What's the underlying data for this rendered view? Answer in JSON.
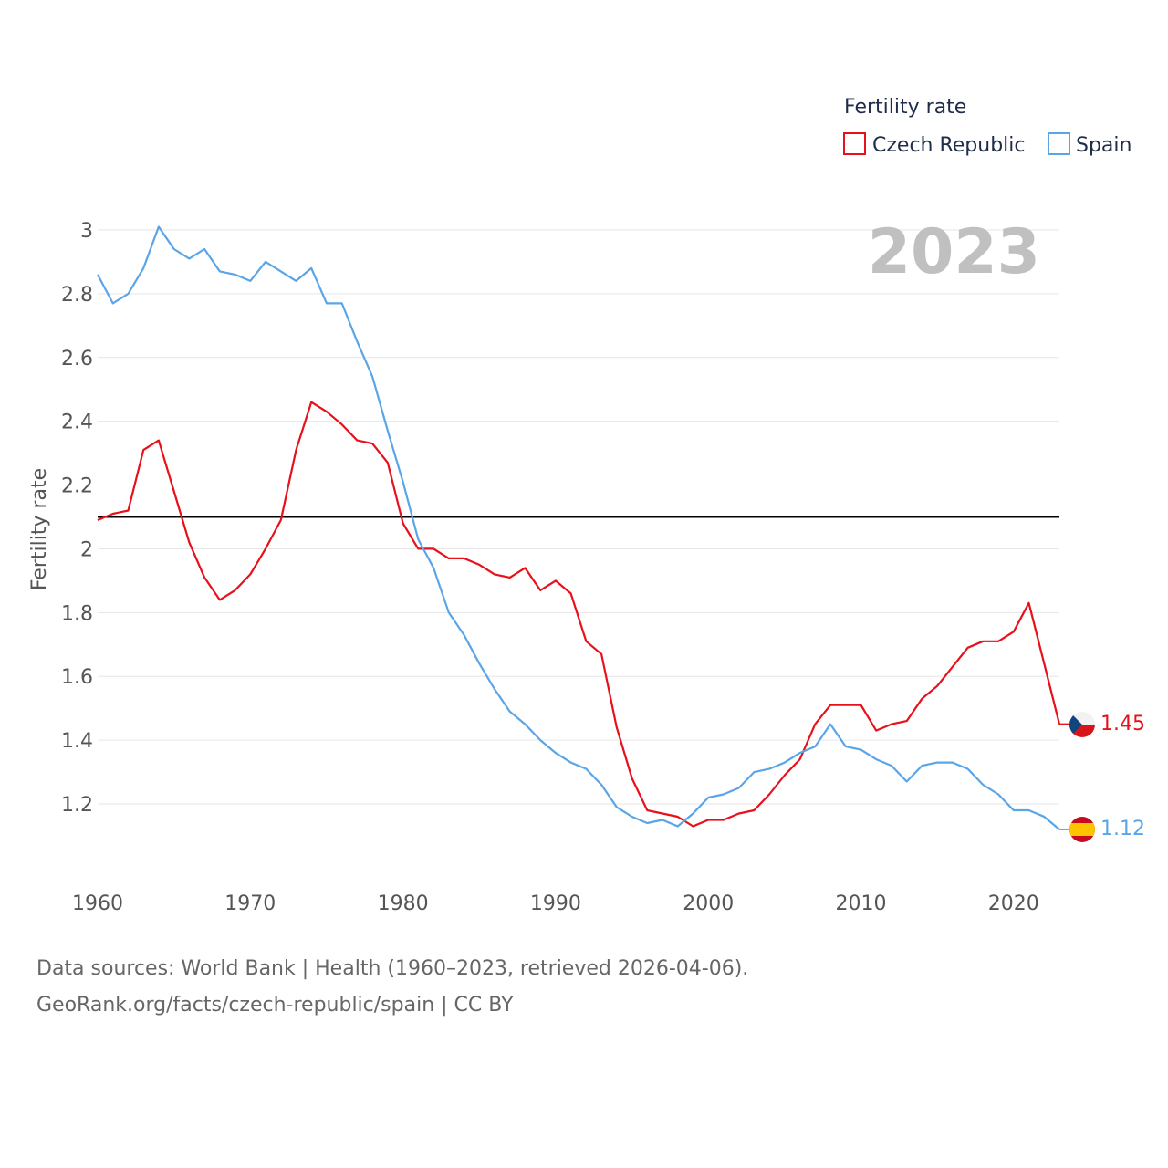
{
  "colors": {
    "czech": "#e8101a",
    "spain": "#5aa5e8",
    "reference": "#000000",
    "grid": "#e6e6e6",
    "year": "#c0c0c0"
  },
  "chart_data": {
    "type": "line",
    "title": "Fertility rate",
    "ylabel": "Fertility rate",
    "xlabel": "",
    "year_label": "2023",
    "xlim": [
      1960,
      2023
    ],
    "ylim": [
      1.0,
      3.05
    ],
    "x_ticks": [
      1960,
      1970,
      1980,
      1990,
      2000,
      2010,
      2020
    ],
    "y_ticks": [
      {
        "value": 1.2,
        "label": "1.2"
      },
      {
        "value": 1.4,
        "label": "1.4"
      },
      {
        "value": 1.6,
        "label": "1.6"
      },
      {
        "value": 1.8,
        "label": "1.8"
      },
      {
        "value": 2.0,
        "label": "2"
      },
      {
        "value": 2.2,
        "label": "2.2"
      },
      {
        "value": 2.4,
        "label": "2.4"
      },
      {
        "value": 2.6,
        "label": "2.6"
      },
      {
        "value": 2.8,
        "label": "2.8"
      },
      {
        "value": 3.0,
        "label": "3"
      }
    ],
    "reference_line": 2.1,
    "x": [
      1960,
      1961,
      1962,
      1963,
      1964,
      1965,
      1966,
      1967,
      1968,
      1969,
      1970,
      1971,
      1972,
      1973,
      1974,
      1975,
      1976,
      1977,
      1978,
      1979,
      1980,
      1981,
      1982,
      1983,
      1984,
      1985,
      1986,
      1987,
      1988,
      1989,
      1990,
      1991,
      1992,
      1993,
      1994,
      1995,
      1996,
      1997,
      1998,
      1999,
      2000,
      2001,
      2002,
      2003,
      2004,
      2005,
      2006,
      2007,
      2008,
      2009,
      2010,
      2011,
      2012,
      2013,
      2014,
      2015,
      2016,
      2017,
      2018,
      2019,
      2020,
      2021,
      2022,
      2023
    ],
    "series": [
      {
        "name": "Czech Republic",
        "key": "czech",
        "end_label": "1.45",
        "values": [
          2.09,
          2.11,
          2.12,
          2.31,
          2.34,
          2.18,
          2.02,
          1.91,
          1.84,
          1.87,
          1.92,
          2.0,
          2.09,
          2.31,
          2.46,
          2.43,
          2.39,
          2.34,
          2.33,
          2.27,
          2.08,
          2.0,
          2.0,
          1.97,
          1.97,
          1.95,
          1.92,
          1.91,
          1.94,
          1.87,
          1.9,
          1.86,
          1.71,
          1.67,
          1.44,
          1.28,
          1.18,
          1.17,
          1.16,
          1.13,
          1.15,
          1.15,
          1.17,
          1.18,
          1.23,
          1.29,
          1.34,
          1.45,
          1.51,
          1.51,
          1.51,
          1.43,
          1.45,
          1.46,
          1.53,
          1.57,
          1.63,
          1.69,
          1.71,
          1.71,
          1.74,
          1.83,
          1.64,
          1.45
        ]
      },
      {
        "name": "Spain",
        "key": "spain",
        "end_label": "1.12",
        "values": [
          2.86,
          2.77,
          2.8,
          2.88,
          3.01,
          2.94,
          2.91,
          2.94,
          2.87,
          2.86,
          2.84,
          2.9,
          2.87,
          2.84,
          2.88,
          2.77,
          2.77,
          2.65,
          2.54,
          2.37,
          2.21,
          2.03,
          1.94,
          1.8,
          1.73,
          1.64,
          1.56,
          1.49,
          1.45,
          1.4,
          1.36,
          1.33,
          1.31,
          1.26,
          1.19,
          1.16,
          1.14,
          1.15,
          1.13,
          1.17,
          1.22,
          1.23,
          1.25,
          1.3,
          1.31,
          1.33,
          1.36,
          1.38,
          1.45,
          1.38,
          1.37,
          1.34,
          1.32,
          1.27,
          1.32,
          1.33,
          1.33,
          1.31,
          1.26,
          1.23,
          1.18,
          1.18,
          1.16,
          1.12
        ]
      }
    ]
  },
  "footer": {
    "sources": "Data sources: World Bank | Health (1960–2023, retrieved 2026-04-06).",
    "link": "GeoRank.org/facts/czech-republic/spain | CC BY"
  }
}
